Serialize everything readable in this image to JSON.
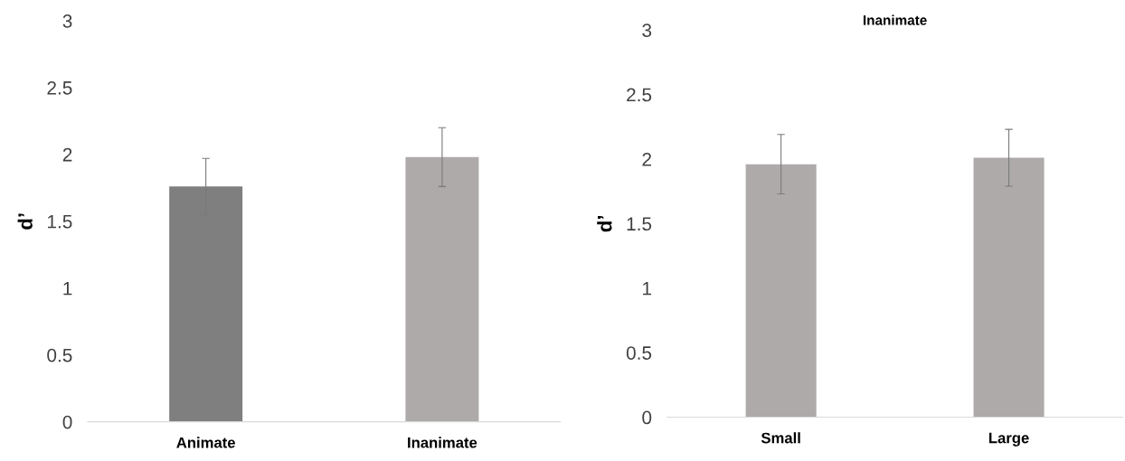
{
  "chart_data": [
    {
      "type": "bar",
      "ylabel": "d’",
      "categories": [
        "Animate",
        "Inanimate"
      ],
      "values": [
        1.76,
        1.98
      ],
      "colors": [
        "#7f7f7f",
        "#aeaaaa"
      ],
      "errors": [
        0.21,
        0.22
      ],
      "ylim": [
        0,
        3
      ],
      "yticks": [
        0,
        0.5,
        1,
        1.5,
        2,
        2.5,
        3
      ],
      "grid": false
    },
    {
      "type": "bar",
      "title": "Inanimate",
      "ylabel": "d’",
      "categories": [
        "Small",
        "Large"
      ],
      "values": [
        1.96,
        2.01
      ],
      "colors": [
        "#aeaaaa",
        "#aeaaaa"
      ],
      "errors": [
        0.23,
        0.22
      ],
      "ylim": [
        0,
        3
      ],
      "yticks": [
        0,
        0.5,
        1,
        1.5,
        2,
        2.5,
        3
      ],
      "grid": false
    }
  ]
}
